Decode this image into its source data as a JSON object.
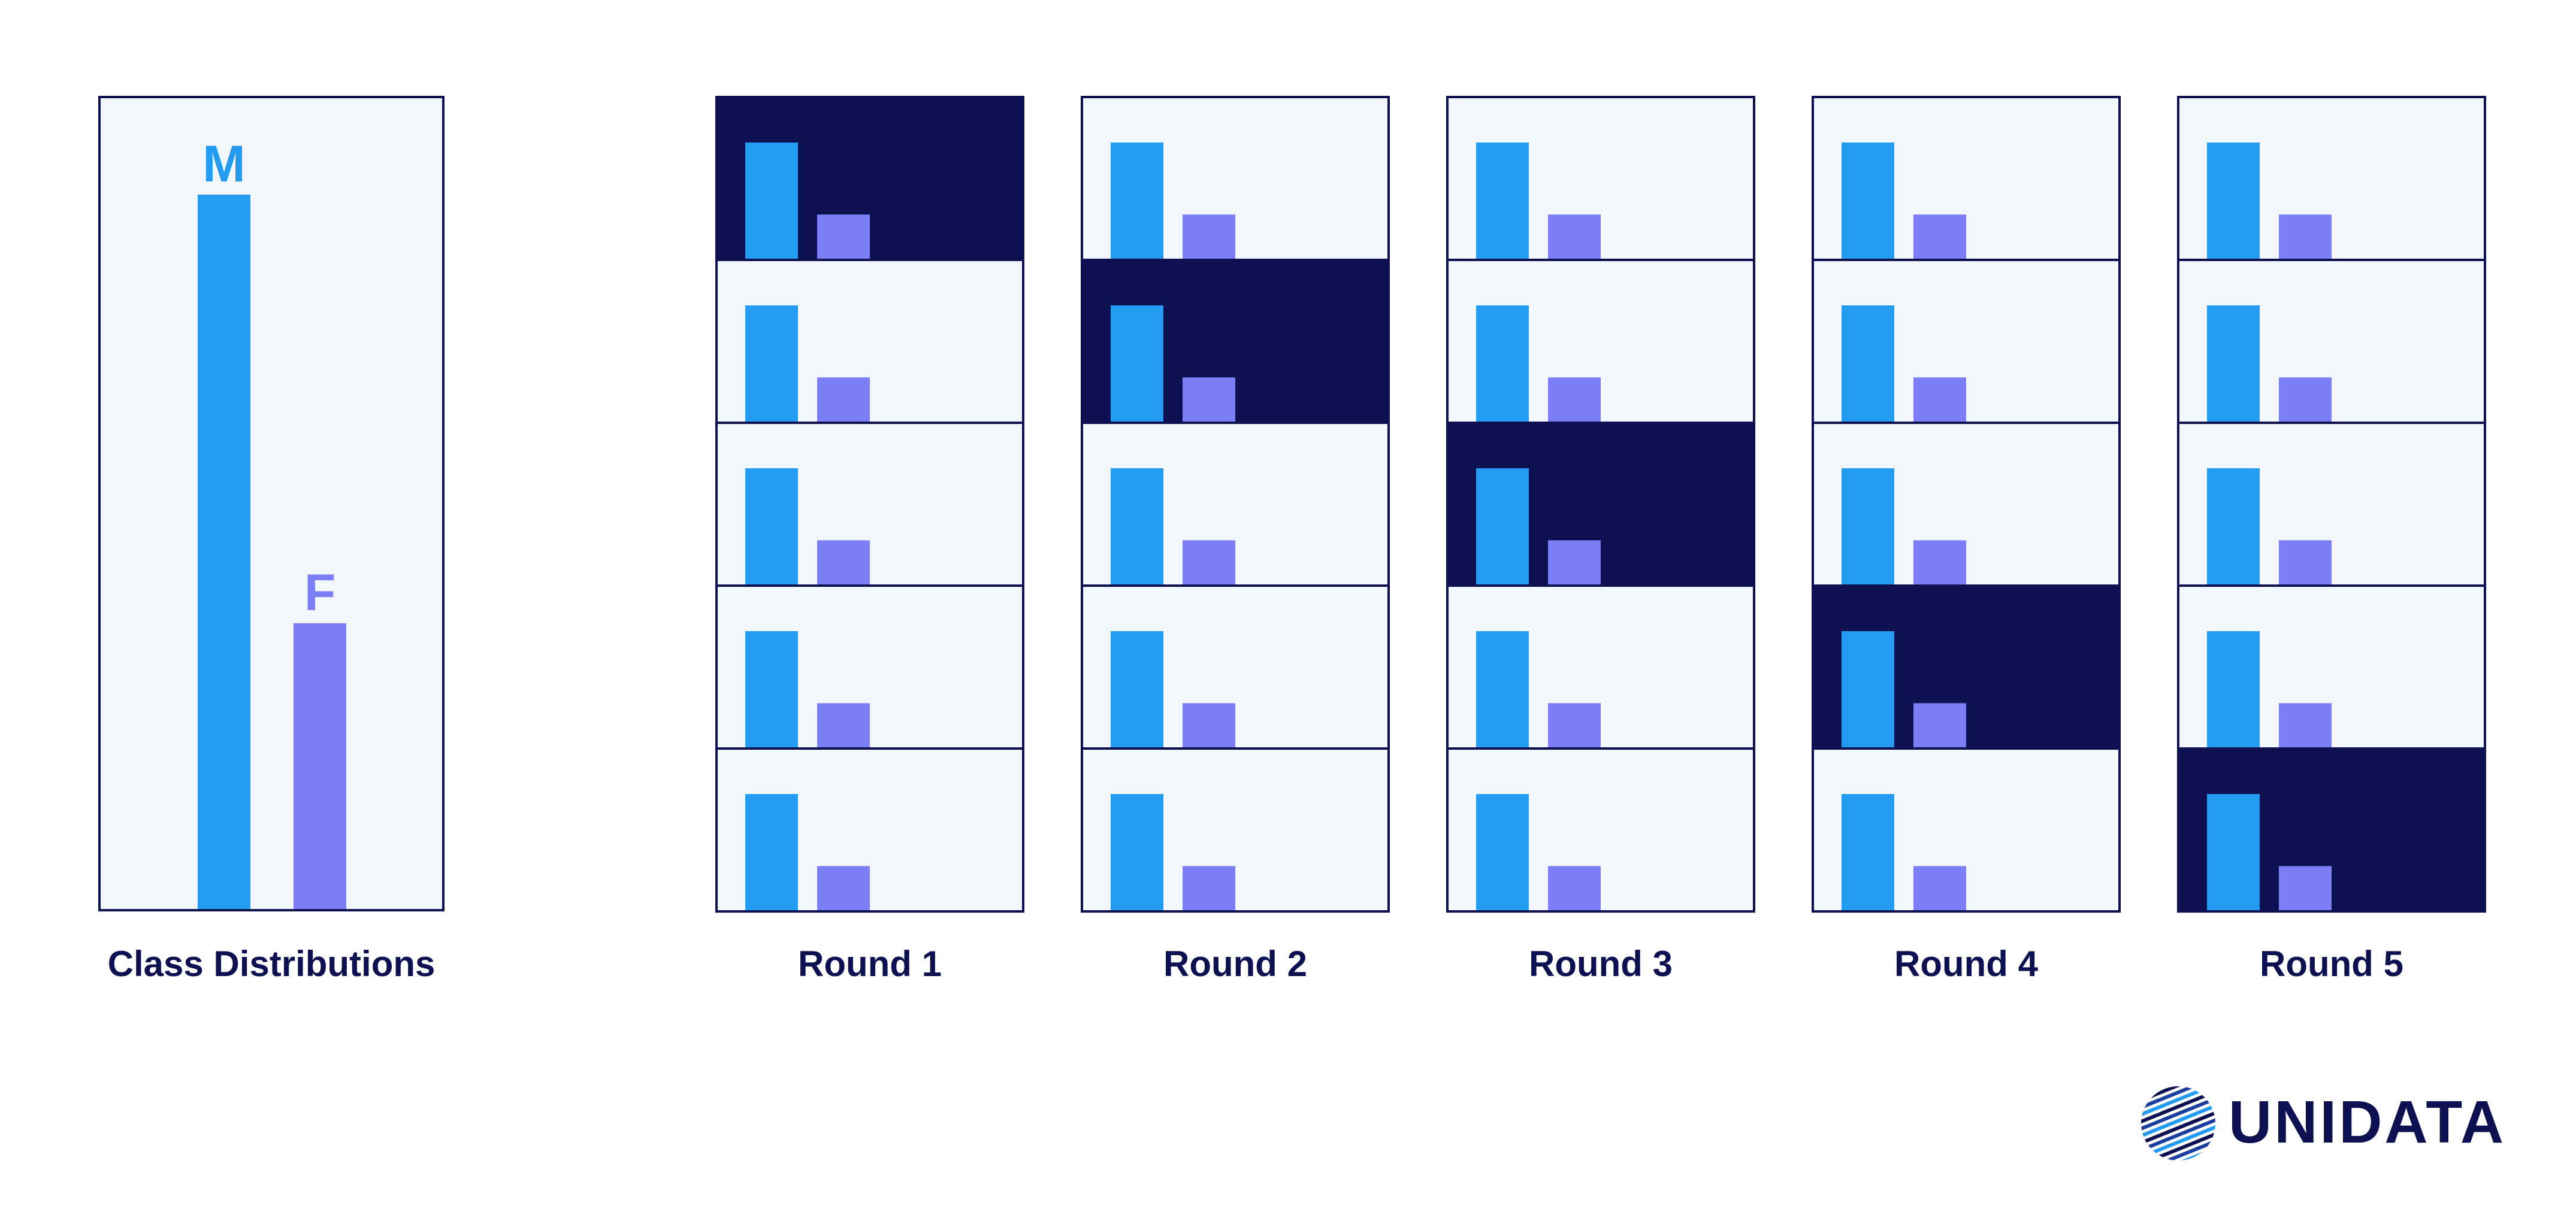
{
  "colors": {
    "panel_bg": "#f2f7fd",
    "border": "#0d1152",
    "highlight": "#0d1152",
    "male": "#229bf0",
    "female": "#7b7ef4",
    "text": "#0d1152"
  },
  "class_distribution": {
    "label": "Class Distributions",
    "classes": [
      {
        "letter": "M",
        "value": 1.0
      },
      {
        "letter": "F",
        "value": 0.4
      }
    ]
  },
  "cross_validation": {
    "fold_count": 5,
    "fold_values": {
      "M": 1.0,
      "F": 0.38
    },
    "rounds": [
      {
        "label": "Round 1",
        "highlighted_fold": 1
      },
      {
        "label": "Round 2",
        "highlighted_fold": 2
      },
      {
        "label": "Round 3",
        "highlighted_fold": 3
      },
      {
        "label": "Round 4",
        "highlighted_fold": 4
      },
      {
        "label": "Round 5",
        "highlighted_fold": 5
      }
    ]
  },
  "logo": {
    "text": "UNIDATA",
    "icon": "striped-globe-icon"
  }
}
